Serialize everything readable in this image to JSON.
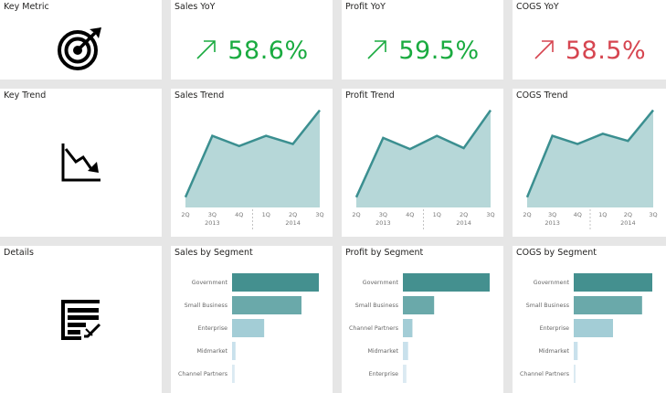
{
  "colors": {
    "positive": "#1aab40",
    "negative": "#d64550",
    "line": "#3b8f90",
    "area": "#b6d7d8",
    "bar_1": "#44908f",
    "bar_2": "#6aa9aa",
    "bar_3": "#a3cdd6",
    "bar_4": "#c9e1ec",
    "bar_5": "#dbeaf2"
  },
  "rows": {
    "key_metric": {
      "label": "Key Metric",
      "icon": "target-icon"
    },
    "key_trend": {
      "label": "Key Trend",
      "icon": "trend-down-chart-icon"
    },
    "details": {
      "label": "Details",
      "icon": "report-edit-icon"
    }
  },
  "kpis": [
    {
      "title": "Sales YoY",
      "value": "58.6%",
      "direction": "up",
      "status": "positive",
      "arrow": "↗"
    },
    {
      "title": "Profit YoY",
      "value": "59.5%",
      "direction": "up",
      "status": "positive",
      "arrow": "↗"
    },
    {
      "title": "COGS YoY",
      "value": "58.5%",
      "direction": "up",
      "status": "negative",
      "arrow": "↗"
    }
  ],
  "chart_data": [
    {
      "type": "area",
      "title": "Sales Trend",
      "categories": [
        "2Q",
        "3Q",
        "4Q",
        "1Q",
        "2Q",
        "3Q"
      ],
      "year_labels": [
        "2013",
        "2014"
      ],
      "values": [
        10,
        70,
        60,
        70,
        62,
        95
      ],
      "ylim": [
        0,
        100
      ],
      "xlabel": "",
      "ylabel": ""
    },
    {
      "type": "area",
      "title": "Profit Trend",
      "categories": [
        "2Q",
        "3Q",
        "4Q",
        "1Q",
        "2Q",
        "3Q"
      ],
      "year_labels": [
        "2013",
        "2014"
      ],
      "values": [
        10,
        68,
        57,
        70,
        58,
        95
      ],
      "ylim": [
        0,
        100
      ],
      "xlabel": "",
      "ylabel": ""
    },
    {
      "type": "area",
      "title": "COGS Trend",
      "categories": [
        "2Q",
        "3Q",
        "4Q",
        "1Q",
        "2Q",
        "3Q"
      ],
      "year_labels": [
        "2013",
        "2014"
      ],
      "values": [
        10,
        70,
        62,
        72,
        65,
        95
      ],
      "ylim": [
        0,
        100
      ],
      "xlabel": "",
      "ylabel": ""
    },
    {
      "type": "bar",
      "orientation": "horizontal",
      "title": "Sales by Segment",
      "categories": [
        "Government",
        "Small Business",
        "Enterprise",
        "Midmarket",
        "Channel Partners"
      ],
      "values": [
        100,
        80,
        37,
        4,
        3
      ],
      "xlim": [
        0,
        100
      ]
    },
    {
      "type": "bar",
      "orientation": "horizontal",
      "title": "Profit by Segment",
      "categories": [
        "Government",
        "Small Business",
        "Channel Partners",
        "Midmarket",
        "Enterprise"
      ],
      "values": [
        100,
        36,
        11,
        6,
        4
      ],
      "xlim": [
        0,
        100
      ]
    },
    {
      "type": "bar",
      "orientation": "horizontal",
      "title": "COGS by Segment",
      "categories": [
        "Government",
        "Small Business",
        "Enterprise",
        "Midmarket",
        "Channel Partners"
      ],
      "values": [
        100,
        87,
        50,
        5,
        2
      ],
      "xlim": [
        0,
        100
      ]
    }
  ]
}
